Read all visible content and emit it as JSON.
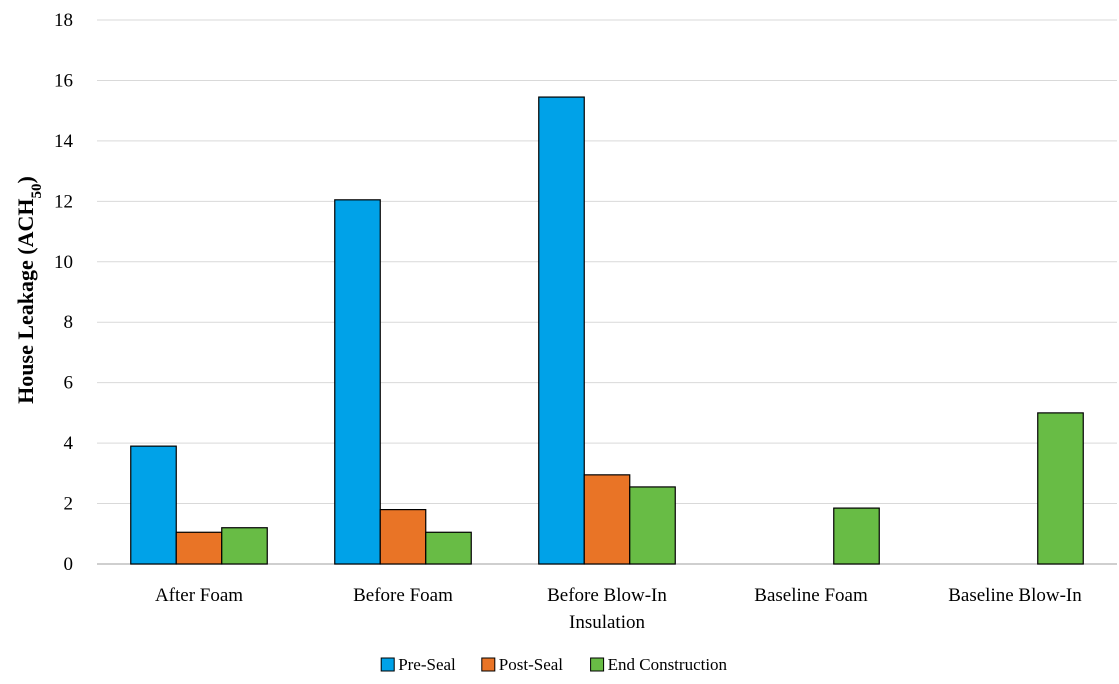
{
  "chart_data": {
    "type": "bar",
    "title": "",
    "xlabel": "",
    "ylabel": "House Leakage (ACH",
    "ylabel_subscript": "50",
    "ylabel_suffix": ")",
    "ylim": [
      0,
      18
    ],
    "yticks": [
      0,
      2,
      4,
      6,
      8,
      10,
      12,
      14,
      16,
      18
    ],
    "grid": true,
    "legend_position": "bottom",
    "categories": [
      [
        "After Foam"
      ],
      [
        "Before Foam"
      ],
      [
        "Before Blow-In",
        "Insulation"
      ],
      [
        "Baseline Foam"
      ],
      [
        "Baseline Blow-In"
      ]
    ],
    "series": [
      {
        "name": "Pre-Seal",
        "color": "#00A2E8",
        "values": [
          3.9,
          12.05,
          15.45,
          null,
          null
        ]
      },
      {
        "name": "Post-Seal",
        "color": "#E97426",
        "values": [
          1.05,
          1.8,
          2.95,
          null,
          null
        ]
      },
      {
        "name": "End Construction",
        "color": "#68BC45",
        "values": [
          1.2,
          1.05,
          2.55,
          1.85,
          5.0
        ]
      }
    ]
  }
}
